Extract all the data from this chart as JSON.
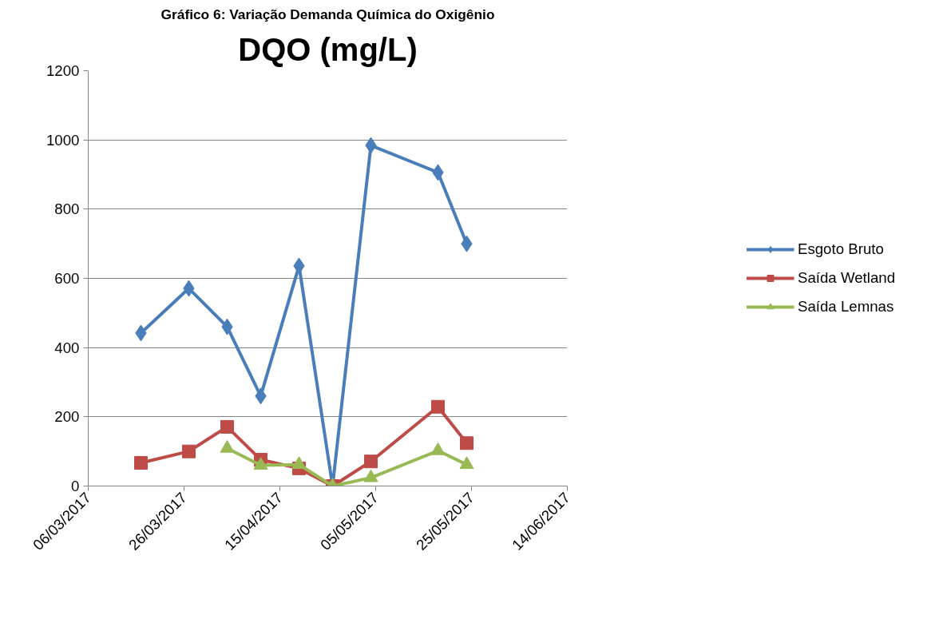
{
  "chart_data": {
    "type": "line",
    "title": "DQO (mg/L)",
    "annotations": [
      "Gráfico 6: Variação Demanda Química do Oxigênio"
    ],
    "x": [
      "2017-03-17",
      "2017-03-27",
      "2017-04-04",
      "2017-04-11",
      "2017-04-19",
      "2017-04-26",
      "2017-05-04",
      "2017-05-18",
      "2017-05-24"
    ],
    "series": [
      {
        "name": "Esgoto Bruto",
        "color": "#4a7ebb",
        "marker": "diamond",
        "values": [
          442,
          571,
          460,
          260,
          636,
          0,
          984,
          906,
          700
        ]
      },
      {
        "name": "Saída Wetland",
        "color": "#be4b48",
        "marker": "square",
        "values": [
          67,
          100,
          171,
          76,
          51,
          0,
          71,
          229,
          124
        ]
      },
      {
        "name": "Saída Lemnas",
        "color": "#98b954",
        "marker": "triangle",
        "values": [
          null,
          null,
          109,
          60,
          62,
          0,
          24,
          102,
          62
        ]
      }
    ],
    "xlim": [
      "2017-03-06",
      "2017-06-14"
    ],
    "xticks": [
      {
        "value": "2017-03-06",
        "label": "06/03/2017"
      },
      {
        "value": "2017-03-26",
        "label": "26/03/2017"
      },
      {
        "value": "2017-04-15",
        "label": "15/04/2017"
      },
      {
        "value": "2017-05-05",
        "label": "05/05/2017"
      },
      {
        "value": "2017-05-25",
        "label": "25/05/2017"
      },
      {
        "value": "2017-06-14",
        "label": "14/06/2017"
      }
    ],
    "ylim": [
      0,
      1200
    ],
    "yticks": [
      0,
      200,
      400,
      600,
      800,
      1000,
      1200
    ],
    "grid": "y",
    "legend": "right",
    "line_style": "solid"
  }
}
